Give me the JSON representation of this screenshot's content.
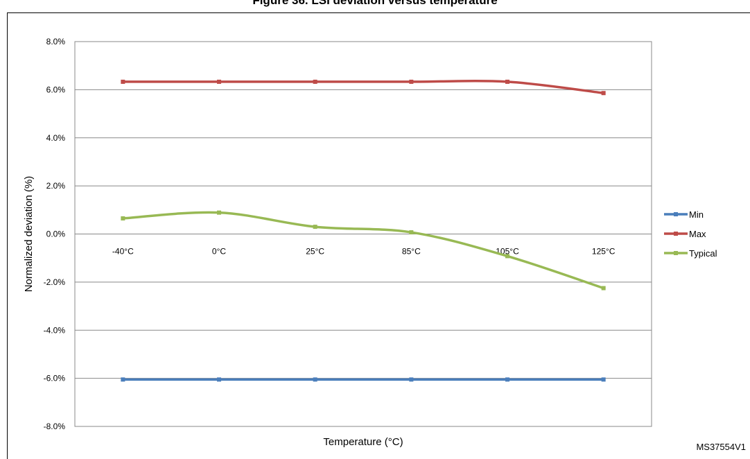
{
  "figure": {
    "title": "Figure 36. LSI deviation versus temperature",
    "code": "MS37554V1"
  },
  "chart_data": {
    "type": "line",
    "categories": [
      "-40°C",
      "0°C",
      "25°C",
      "85°C",
      "105°C",
      "125°C"
    ],
    "xlabel": "Temperature (°C)",
    "ylabel": "Normalized deviation (%)",
    "ylim": [
      -8,
      8
    ],
    "yticks": [
      "8.0%",
      "6.0%",
      "4.0%",
      "2.0%",
      "0.0%",
      "-2.0%",
      "-4.0%",
      "-6.0%",
      "-8.0%"
    ],
    "grid": true,
    "legend_position": "right",
    "series": [
      {
        "name": "Min",
        "color": "#4a7ebb",
        "values": [
          -6.05,
          -6.05,
          -6.05,
          -6.05,
          -6.05,
          -6.05
        ]
      },
      {
        "name": "Max",
        "color": "#be4b48",
        "values": [
          6.33,
          6.33,
          6.33,
          6.33,
          6.33,
          5.86
        ]
      },
      {
        "name": "Typical",
        "color": "#98b954",
        "values": [
          0.65,
          0.89,
          0.3,
          0.07,
          -0.92,
          -2.25
        ]
      }
    ]
  }
}
